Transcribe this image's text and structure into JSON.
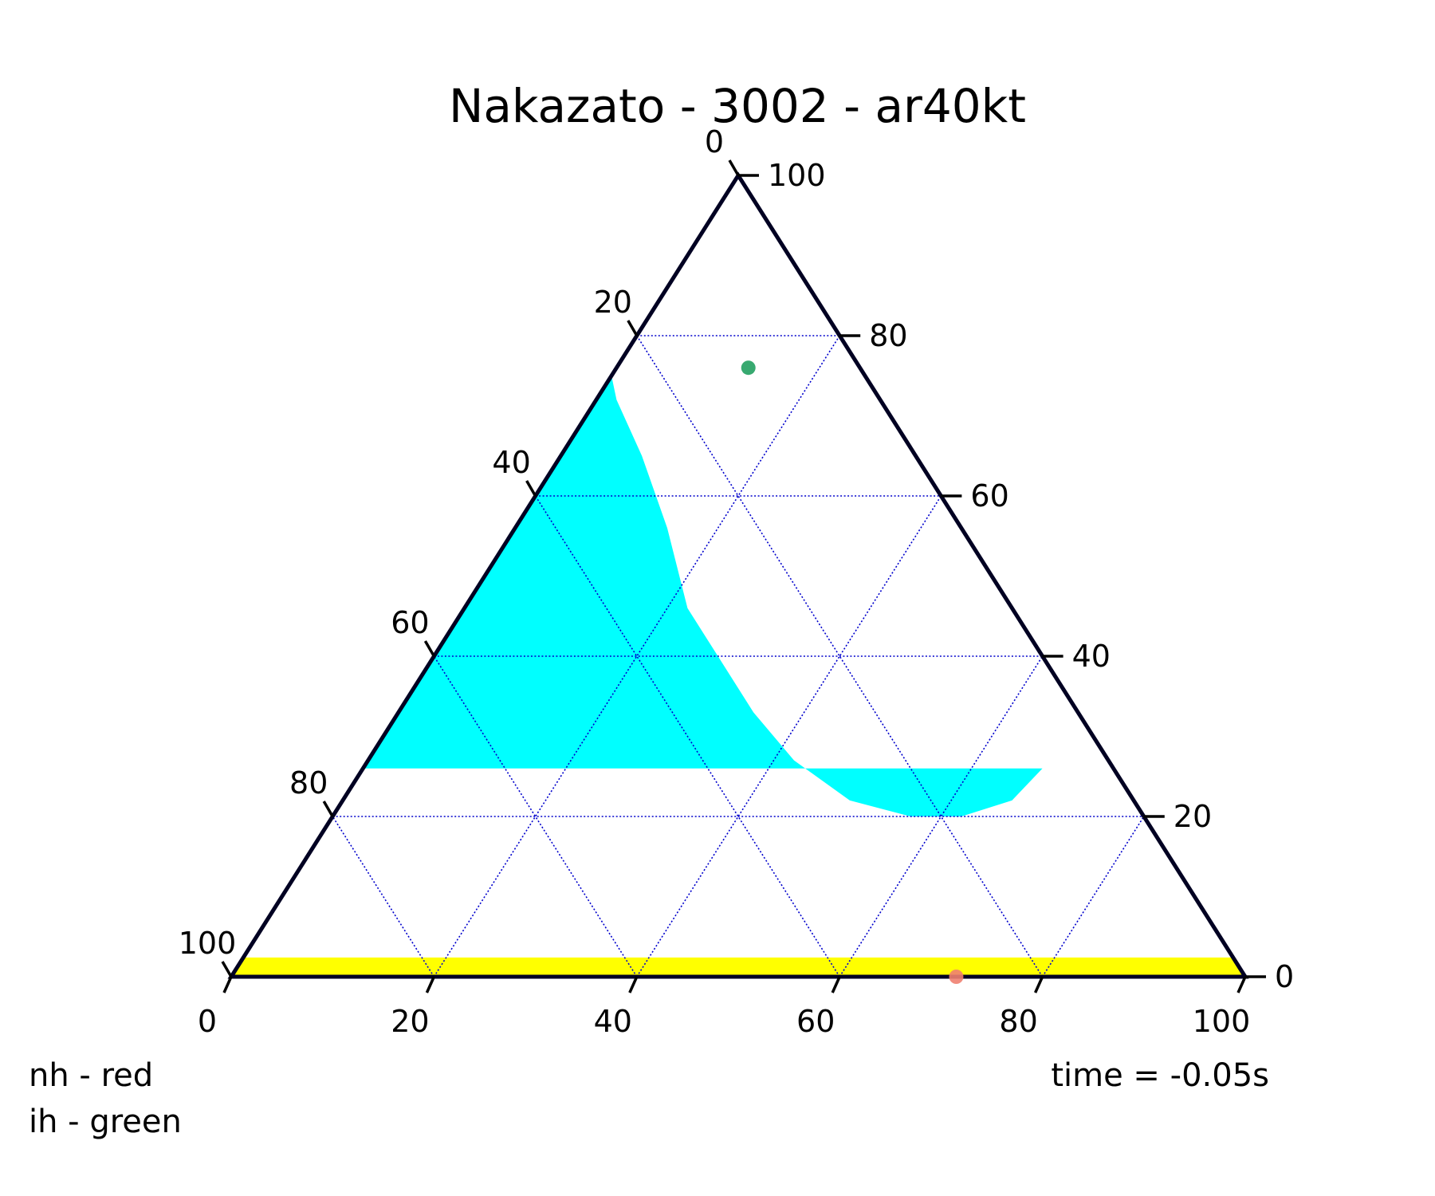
{
  "chart_data": {
    "type": "scatter",
    "subtype": "ternary",
    "title": "Nakazato - 3002 - ar40kt",
    "axes": {
      "bottom_ticks": [
        "0",
        "20",
        "40",
        "60",
        "80",
        "100"
      ],
      "left_ticks": [
        "0",
        "20",
        "40",
        "60",
        "80",
        "100"
      ],
      "right_ticks": [
        "100",
        "80",
        "60",
        "40",
        "20",
        "0"
      ],
      "range": [
        0,
        100
      ]
    },
    "grid": true,
    "grid_color": "#0000cc",
    "regions": [
      {
        "name": "cyan-region",
        "color": "#00ffff",
        "points": [
          {
            "b": 0,
            "r": 100
          },
          {
            "b": 0,
            "r": 75
          },
          {
            "b": 2,
            "r": 72
          },
          {
            "b": 8,
            "r": 65
          },
          {
            "b": 15,
            "r": 56
          },
          {
            "b": 22,
            "r": 46
          },
          {
            "b": 28,
            "r": 40
          },
          {
            "b": 35,
            "r": 33
          },
          {
            "b": 42,
            "r": 27
          },
          {
            "b": 50,
            "r": 22
          },
          {
            "b": 57,
            "r": 20
          },
          {
            "b": 62,
            "r": 20
          },
          {
            "b": 66,
            "r": 22
          },
          {
            "b": 67,
            "r": 26
          },
          {
            "b": 0,
            "r": 26
          }
        ]
      },
      {
        "name": "yellow-region",
        "color": "#ffff00",
        "band": {
          "r_from": 0,
          "r_to": 2.4
        }
      }
    ],
    "points": [
      {
        "name": "nh",
        "color": "#f08070",
        "b": 71.5,
        "r": 0
      },
      {
        "name": "ih",
        "color": "#22a060",
        "b": 13,
        "r": 76
      }
    ]
  },
  "legend": {
    "nh": "nh - red",
    "ih": "ih - green"
  },
  "time_label": "time = -0.05s"
}
